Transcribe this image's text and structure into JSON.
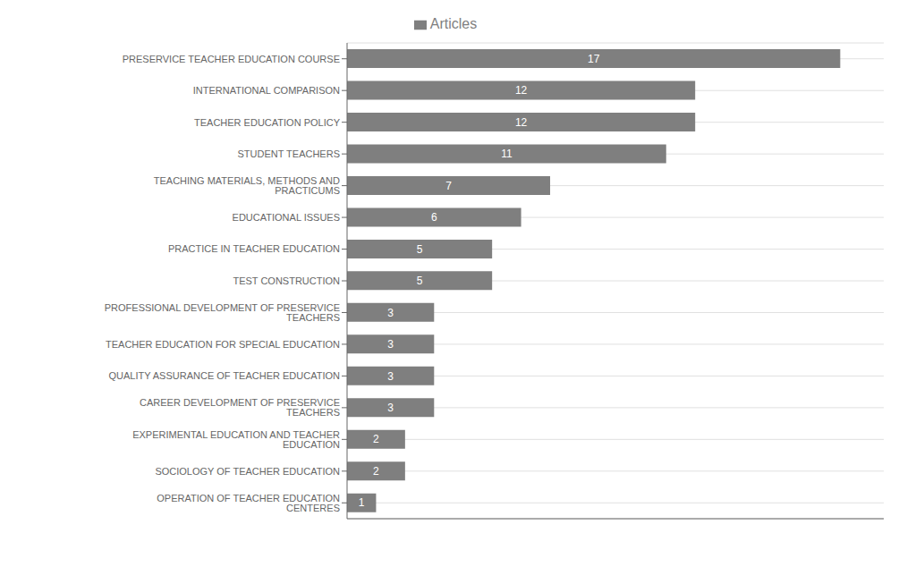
{
  "chart_data": {
    "type": "bar",
    "orientation": "horizontal",
    "categories": [
      "OPERATION OF TEACHER EDUCATION CENTERES",
      "SOCIOLOGY OF TEACHER EDUCATION",
      "EXPERIMENTAL EDUCATION AND TEACHER EDUCATION",
      "CAREER DEVELOPMENT OF PRESERVICE TEACHERS",
      "QUALITY ASSURANCE OF TEACHER EDUCATION",
      "TEACHER EDUCATION FOR SPECIAL EDUCATION",
      "PROFESSIONAL DEVELOPMENT OF PRESERVICE TEACHERS",
      "TEST CONSTRUCTION",
      "PRACTICE IN TEACHER EDUCATION",
      "EDUCATIONAL ISSUES",
      "TEACHING MATERIALS, METHODS AND PRACTICUMS",
      "STUDENT TEACHERS",
      "TEACHER EDUCATION POLICY",
      "INTERNATIONAL COMPARISON",
      "PRESERVICE TEACHER EDUCATION COURSE"
    ],
    "series": [
      {
        "name": "Articles",
        "color": "#7f7f7f",
        "values": [
          1,
          2,
          2,
          3,
          3,
          3,
          3,
          5,
          5,
          6,
          7,
          11,
          12,
          12,
          17
        ]
      }
    ],
    "xlim": [
      0,
      18.5
    ],
    "grid": true,
    "legend": "top",
    "data_labels": true,
    "tick_labels": "y"
  }
}
